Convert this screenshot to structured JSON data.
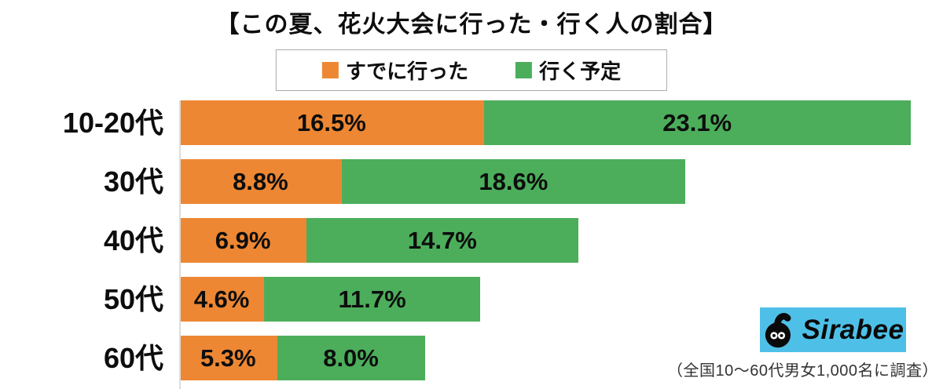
{
  "chart_data": {
    "type": "bar",
    "orientation": "horizontal",
    "stacked": true,
    "title": "【この夏、花火大会に行った・行く人の割合】",
    "categories": [
      "10-20代",
      "30代",
      "40代",
      "50代",
      "60代"
    ],
    "series": [
      {
        "name": "すでに行った",
        "color": "#ED8733",
        "values": [
          16.5,
          8.8,
          6.9,
          4.6,
          5.3
        ]
      },
      {
        "name": "行く予定",
        "color": "#4CAE5B",
        "values": [
          23.1,
          18.6,
          14.7,
          11.7,
          8.0
        ]
      }
    ],
    "value_suffix": "%",
    "xlim": [
      0,
      39.6
    ],
    "data_labels": "inside-center",
    "legend_position": "top-center",
    "grid": false,
    "axis_line_color": "#dddddd"
  },
  "branding": {
    "logo_text": "Sirabee",
    "logo_bg_color": "#4EC0E8"
  },
  "footnote": "（全国10〜60代男女1,000名に調査）"
}
